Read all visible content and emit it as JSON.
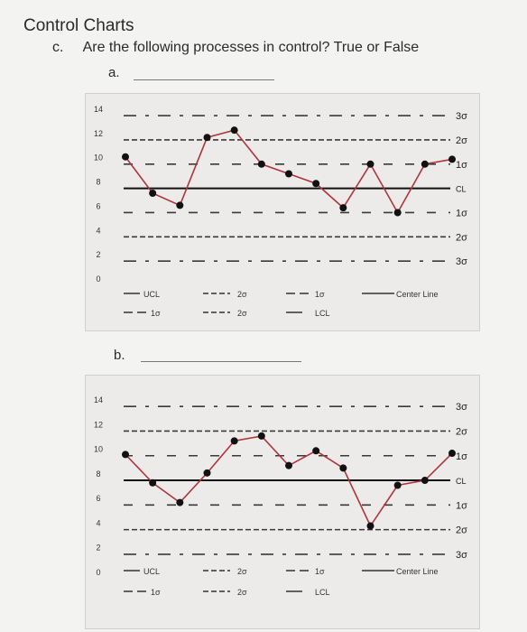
{
  "page": {
    "heading": "Control Charts",
    "question_letter": "c.",
    "question_text": "Are the following processes in control? True or False",
    "part_a": "a.",
    "part_b": "b."
  },
  "colors": {
    "line": "#b0343c",
    "dot": "#111111",
    "center": "#111111",
    "limit": "#3a3a3a",
    "panel": "#ecebea"
  },
  "chart_data": [
    {
      "type": "line",
      "y_ticks": [
        "14",
        "12",
        "10",
        "8",
        "6",
        "4",
        "2",
        "0"
      ],
      "ylim": [
        0,
        14
      ],
      "control_lines": [
        {
          "label": "3σ",
          "value": 13.4
        },
        {
          "label": "2σ",
          "value": 11.4
        },
        {
          "label": "1σ",
          "value": 9.4
        },
        {
          "label": "CL",
          "value": 7.4
        },
        {
          "label": "1σ",
          "value": 5.4
        },
        {
          "label": "2σ",
          "value": 3.4
        },
        {
          "label": "3σ",
          "value": 1.4
        }
      ],
      "series": [
        {
          "x": [
            1,
            2,
            3,
            4,
            5,
            6,
            7,
            8,
            9,
            10,
            11,
            12,
            13
          ],
          "values": [
            10.0,
            7.0,
            6.0,
            11.6,
            12.2,
            9.4,
            8.6,
            7.8,
            5.8,
            9.4,
            5.4,
            9.4,
            9.8
          ]
        }
      ],
      "legend": [
        {
          "label": "UCL",
          "style": "solid-short"
        },
        {
          "label": "2σ",
          "style": "dash"
        },
        {
          "label": "1σ",
          "style": "dash-long"
        },
        {
          "label": "Center Line",
          "style": "solid-long"
        },
        {
          "label": "1σ",
          "style": "dash-long"
        },
        {
          "label": "2σ",
          "style": "dash"
        },
        {
          "label": "LCL",
          "style": "solid-short"
        }
      ]
    },
    {
      "type": "line",
      "y_ticks": [
        "14",
        "12",
        "10",
        "8",
        "6",
        "4",
        "2",
        "0"
      ],
      "ylim": [
        0,
        14
      ],
      "control_lines": [
        {
          "label": "3σ",
          "value": 13.4
        },
        {
          "label": "2σ",
          "value": 11.4
        },
        {
          "label": "1σ",
          "value": 9.4
        },
        {
          "label": "CL",
          "value": 7.4
        },
        {
          "label": "1σ",
          "value": 5.4
        },
        {
          "label": "2σ",
          "value": 3.4
        },
        {
          "label": "3σ",
          "value": 1.4
        }
      ],
      "series": [
        {
          "x": [
            1,
            2,
            3,
            4,
            5,
            6,
            7,
            8,
            9,
            10,
            11,
            12,
            13
          ],
          "values": [
            9.5,
            7.2,
            5.6,
            8.0,
            10.6,
            11.0,
            8.6,
            9.8,
            8.4,
            3.7,
            7.0,
            7.4,
            9.6
          ]
        }
      ],
      "legend": [
        {
          "label": "UCL",
          "style": "solid-short"
        },
        {
          "label": "2σ",
          "style": "dash"
        },
        {
          "label": "1σ",
          "style": "dash-long"
        },
        {
          "label": "Center Line",
          "style": "solid-long"
        },
        {
          "label": "1σ",
          "style": "dash-long"
        },
        {
          "label": "2σ",
          "style": "dash"
        },
        {
          "label": "LCL",
          "style": "solid-short"
        }
      ]
    }
  ]
}
